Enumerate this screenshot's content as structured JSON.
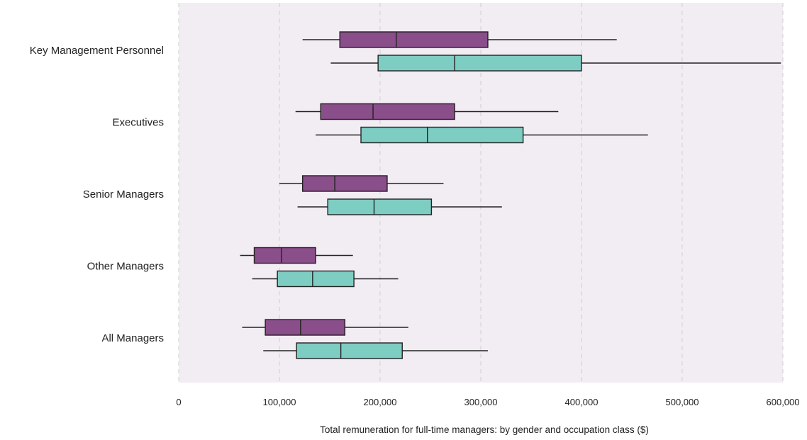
{
  "chart_data": {
    "type": "boxplot",
    "orientation": "horizontal",
    "title": "",
    "xlabel": "Total remuneration for full-time managers: by gender and occupation class ($)",
    "ylabel": "",
    "xlim": [
      0,
      600000
    ],
    "x_ticks": [
      0,
      100000,
      200000,
      300000,
      400000,
      500000,
      600000
    ],
    "x_tick_labels": [
      "0",
      "100,000",
      "200,000",
      "300,000",
      "400,000",
      "500,000",
      "600,000"
    ],
    "grid": "vertical dashed",
    "plot_background": "#f2ecf3",
    "categories": [
      "Key Management Personnel",
      "Executives",
      "Senior Managers",
      "Other Managers",
      "All Managers"
    ],
    "series": [
      {
        "color": "#8a4e8a",
        "boxes": [
          {
            "whisker_low": 123000,
            "q1": 160000,
            "median": 216000,
            "q3": 307000,
            "whisker_high": 435000
          },
          {
            "whisker_low": 116000,
            "q1": 141000,
            "median": 193000,
            "q3": 274000,
            "whisker_high": 377000
          },
          {
            "whisker_low": 100000,
            "q1": 123000,
            "median": 155000,
            "q3": 207000,
            "whisker_high": 263000
          },
          {
            "whisker_low": 61000,
            "q1": 75000,
            "median": 102000,
            "q3": 136000,
            "whisker_high": 173000
          },
          {
            "whisker_low": 63000,
            "q1": 86000,
            "median": 121000,
            "q3": 165000,
            "whisker_high": 228000
          }
        ]
      },
      {
        "color": "#7ecdc2",
        "boxes": [
          {
            "whisker_low": 151000,
            "q1": 198000,
            "median": 274000,
            "q3": 400000,
            "whisker_high": 598000
          },
          {
            "whisker_low": 136000,
            "q1": 181000,
            "median": 247000,
            "q3": 342000,
            "whisker_high": 466000
          },
          {
            "whisker_low": 118000,
            "q1": 148000,
            "median": 194000,
            "q3": 251000,
            "whisker_high": 321000
          },
          {
            "whisker_low": 73000,
            "q1": 98000,
            "median": 133000,
            "q3": 174000,
            "whisker_high": 218000
          },
          {
            "whisker_low": 84000,
            "q1": 117000,
            "median": 161000,
            "q3": 222000,
            "whisker_high": 307000
          }
        ]
      }
    ]
  }
}
